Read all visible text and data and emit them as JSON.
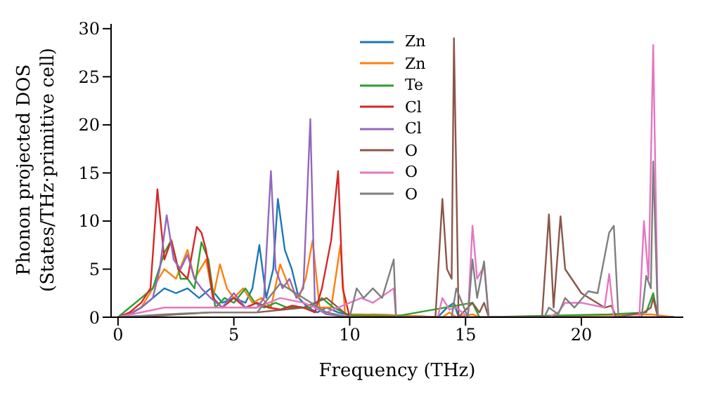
{
  "chart_data": {
    "type": "line",
    "xlabel": "Frequency (THz)",
    "ylabel": "Phonon projected DOS\n(States/THz·primitive cell)",
    "xlim": [
      -0.3,
      24.4
    ],
    "ylim": [
      0,
      30.5
    ],
    "xticks": [
      0,
      5,
      10,
      15,
      20
    ],
    "yticks": [
      0,
      5,
      10,
      15,
      20,
      25,
      30
    ],
    "grid": false,
    "legend": "top",
    "marker": "none",
    "line_style": "solid",
    "series": [
      {
        "name": "Zn",
        "color": "#1f77b4",
        "x": [
          0,
          0.5,
          1,
          1.5,
          2,
          2.5,
          3,
          3.5,
          4,
          4.5,
          5,
          5.5,
          5.8,
          6.1,
          6.4,
          6.7,
          6.9,
          7.2,
          7.5,
          7.8,
          8.2,
          8.6,
          9,
          9.5,
          10,
          11,
          12,
          13.8,
          14.2,
          14.5,
          14.7,
          15
        ],
        "values": [
          0,
          0.3,
          1,
          2,
          3,
          2.5,
          3,
          2,
          3,
          1.5,
          2,
          1.5,
          3,
          7.5,
          2,
          5,
          12.3,
          7,
          5,
          2,
          1,
          0.5,
          1,
          0.5,
          0.2,
          0.3,
          0.2,
          0,
          1,
          1.5,
          0,
          0
        ]
      },
      {
        "name": "Zn",
        "color": "#ff7f0e",
        "x": [
          0,
          0.5,
          1,
          1.5,
          2,
          2.5,
          3,
          3.3,
          3.8,
          4.1,
          4.4,
          4.7,
          5,
          5.4,
          5.8,
          6.2,
          6.6,
          7,
          7.4,
          7.8,
          8.1,
          8.4,
          8.7,
          9.2,
          9.6,
          9.8,
          10.5,
          12,
          14,
          14.3,
          14.6,
          15.3,
          15.6,
          16,
          23,
          24
        ],
        "values": [
          0,
          0.4,
          1,
          3,
          5,
          4,
          7,
          4,
          6,
          2,
          5.5,
          3,
          2,
          3,
          1.5,
          2,
          1,
          5.5,
          3,
          2,
          4,
          8,
          1,
          1,
          7.5,
          0.3,
          0.3,
          0.2,
          0,
          0.5,
          0,
          0.3,
          0,
          0,
          0.3,
          0
        ]
      },
      {
        "name": "Te",
        "color": "#2ca02c",
        "x": [
          0,
          0.5,
          1,
          1.5,
          2,
          2.3,
          2.7,
          3,
          3.3,
          3.6,
          3.9,
          4.2,
          4.6,
          5,
          5.5,
          5.9,
          6.3,
          6.8,
          7.3,
          7.8,
          8.3,
          8.8,
          9.3,
          10,
          12,
          15.3,
          15.6,
          21.2,
          22.8,
          23.1,
          23.3
        ],
        "values": [
          0,
          1,
          2,
          3,
          6.7,
          8,
          4,
          4,
          3,
          7.8,
          6,
          1,
          2,
          1.5,
          3,
          1.5,
          1,
          1.5,
          1,
          1,
          1,
          2,
          1,
          0.2,
          0.1,
          1.5,
          0,
          0.3,
          0.5,
          2.5,
          0
        ]
      },
      {
        "name": "Cl",
        "color": "#d62728",
        "x": [
          0,
          0.5,
          1,
          1.4,
          1.7,
          2,
          2.3,
          2.6,
          3,
          3.4,
          3.6,
          3.8,
          4.1,
          4.5,
          5,
          5.5,
          6,
          6.5,
          7,
          7.5,
          8,
          8.5,
          8.8,
          9.2,
          9.5,
          9.7,
          10,
          12,
          24
        ],
        "values": [
          0,
          0.5,
          1.5,
          3,
          13.3,
          6,
          8,
          5,
          4,
          9.4,
          8.8,
          7,
          2,
          1,
          2,
          1,
          1.5,
          1,
          0.8,
          1.2,
          1,
          0.5,
          3,
          8,
          15.2,
          3,
          0,
          0,
          0
        ]
      },
      {
        "name": "Cl",
        "color": "#9467bd",
        "x": [
          0,
          0.5,
          1,
          1.5,
          1.8,
          2.1,
          2.4,
          2.7,
          3,
          3.3,
          3.6,
          4,
          4.5,
          5,
          5.5,
          6,
          6.3,
          6.6,
          6.8,
          7.1,
          7.4,
          7.7,
          8,
          8.3,
          8.5,
          9,
          10,
          12,
          24
        ],
        "values": [
          0,
          0.3,
          1,
          2,
          5,
          10.6,
          6,
          5,
          6.5,
          4,
          3,
          2,
          1,
          2.5,
          1,
          1,
          2,
          15.2,
          5,
          3,
          4,
          2,
          3,
          20.6,
          1,
          0.3,
          0,
          0,
          0
        ]
      },
      {
        "name": "O",
        "color": "#8c564b",
        "x": [
          0,
          2,
          4,
          6,
          8,
          9,
          10,
          13.7,
          14,
          14.2,
          14.4,
          14.5,
          14.7,
          15.3,
          15.6,
          15.8,
          16,
          18.3,
          18.6,
          18.8,
          19.1,
          19.3,
          20,
          21,
          21.3,
          21.5,
          22.7,
          23,
          23.1,
          23.3,
          24
        ],
        "values": [
          0,
          0.2,
          0.5,
          0.5,
          1,
          2,
          0,
          0,
          12.3,
          5,
          4,
          29,
          0,
          1.5,
          0.5,
          1.5,
          0,
          0,
          10.7,
          1,
          10.5,
          5,
          2.5,
          1,
          1.2,
          0,
          0.5,
          1,
          2,
          0,
          0
        ]
      },
      {
        "name": "O",
        "color": "#e377c2",
        "x": [
          0,
          2,
          4,
          6,
          7,
          8,
          9,
          10.5,
          11,
          11.9,
          12,
          13.8,
          14,
          14.3,
          14.6,
          15.1,
          15.3,
          15.5,
          15.8,
          16,
          18.6,
          19,
          19.3,
          20,
          21,
          21.2,
          21.4,
          22.5,
          22.7,
          22.9,
          23.1,
          23.3,
          24
        ],
        "values": [
          0,
          1,
          1,
          1,
          2,
          1.5,
          0.5,
          2,
          1.5,
          3,
          0,
          0,
          2,
          0.8,
          1,
          0,
          9.5,
          4,
          5.3,
          0,
          0,
          0.5,
          1.5,
          1.5,
          1,
          4.5,
          0,
          0,
          10,
          4,
          28.3,
          0,
          0
        ]
      },
      {
        "name": "O",
        "color": "#7f7f7f",
        "x": [
          0,
          2,
          4,
          6,
          7,
          8,
          9,
          10,
          10.3,
          10.6,
          11,
          11.4,
          11.9,
          12,
          14.4,
          14.6,
          15.1,
          15.3,
          15.5,
          15.8,
          16,
          18.4,
          18.6,
          19,
          19.3,
          19.7,
          20.3,
          20.7,
          21.2,
          21.4,
          21.6,
          22.6,
          22.8,
          23,
          23.1,
          23.3,
          24
        ],
        "values": [
          0,
          0.3,
          0.5,
          0.5,
          3.5,
          2,
          0.5,
          0,
          3,
          2,
          3,
          2,
          6,
          0,
          0,
          3,
          0,
          6,
          2,
          5.8,
          0,
          0,
          1,
          0.3,
          2,
          1,
          2.7,
          2.5,
          8.8,
          9.5,
          0,
          0,
          4.3,
          3,
          16.2,
          0,
          0
        ]
      }
    ]
  }
}
